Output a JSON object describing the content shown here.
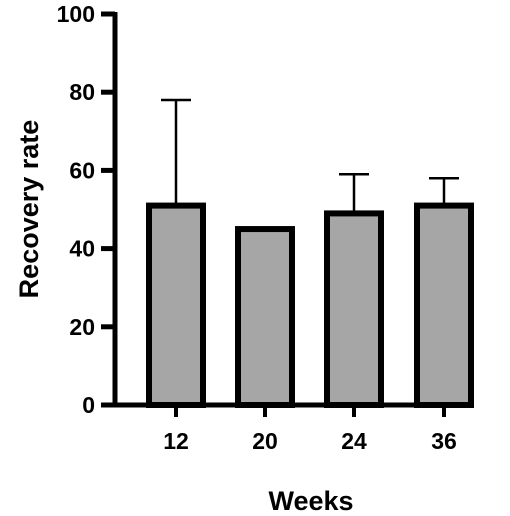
{
  "chart_data": {
    "type": "bar",
    "title": "",
    "xlabel": "Weeks",
    "ylabel": "Recovery rate",
    "categories": [
      "12",
      "20",
      "24",
      "36"
    ],
    "values": [
      51,
      45,
      49,
      51
    ],
    "error_upper": [
      78,
      null,
      59,
      58
    ],
    "ylim": [
      0,
      100
    ],
    "yticks": [
      "0",
      "20",
      "40",
      "60",
      "80",
      "100"
    ],
    "grid": false,
    "legend": "none",
    "bar_fill": "#a6a6a6",
    "bar_edge": "#000000"
  }
}
